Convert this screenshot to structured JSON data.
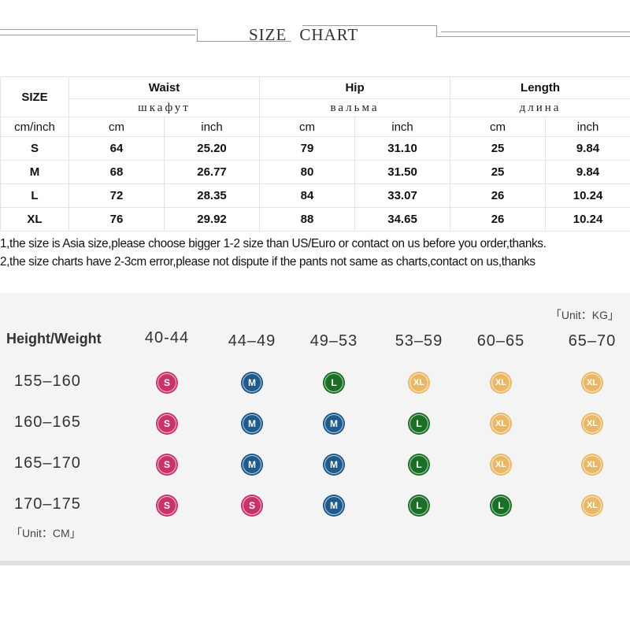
{
  "title": {
    "left": "SIZE",
    "right": "CHART"
  },
  "table": {
    "size_header": "SIZE",
    "groups": [
      {
        "label": "Waist",
        "ru": "шкафут"
      },
      {
        "label": "Hip",
        "ru": "вальма"
      },
      {
        "label": "Length",
        "ru": "длина"
      }
    ],
    "unit_label": "cm/inch",
    "units": [
      "cm",
      "inch",
      "cm",
      "inch",
      "cm",
      "inch"
    ],
    "rows": [
      {
        "size": "S",
        "values": [
          "64",
          "25.20",
          "79",
          "31.10",
          "25",
          "9.84"
        ]
      },
      {
        "size": "M",
        "values": [
          "68",
          "26.77",
          "80",
          "31.50",
          "25",
          "9.84"
        ]
      },
      {
        "size": "L",
        "values": [
          "72",
          "28.35",
          "84",
          "33.07",
          "26",
          "10.24"
        ]
      },
      {
        "size": "XL",
        "values": [
          "76",
          "29.92",
          "88",
          "34.65",
          "26",
          "10.24"
        ]
      }
    ]
  },
  "notes": [
    "1,the size is Asia size,please choose bigger 1-2 size than US/Euro or contact on us before you order,thanks.",
    "2,the size charts have 2-3cm error,please not dispute if the pants not same as charts,contact on us,thanks"
  ],
  "fit_chart": {
    "unit_weight": "「Unit：KG」",
    "unit_height": "「Unit：CM」",
    "corner_label": "Height/Weight",
    "weights": [
      "40-44",
      "44–49",
      "49–53",
      "53–59",
      "60–65",
      "65–70"
    ],
    "heights": [
      "155–160",
      "160–165",
      "165–170",
      "170–175"
    ],
    "grid": [
      [
        "S",
        "M",
        "L",
        "XL",
        "XL",
        "XL"
      ],
      [
        "S",
        "M",
        "M",
        "L",
        "XL",
        "XL"
      ],
      [
        "S",
        "M",
        "M",
        "L",
        "XL",
        "XL"
      ],
      [
        "S",
        "S",
        "M",
        "L",
        "L",
        "XL"
      ]
    ],
    "colors": {
      "S": "#c8336b",
      "M": "#1f5a8c",
      "L": "#1b6e25",
      "XL": "#e8b867"
    }
  }
}
